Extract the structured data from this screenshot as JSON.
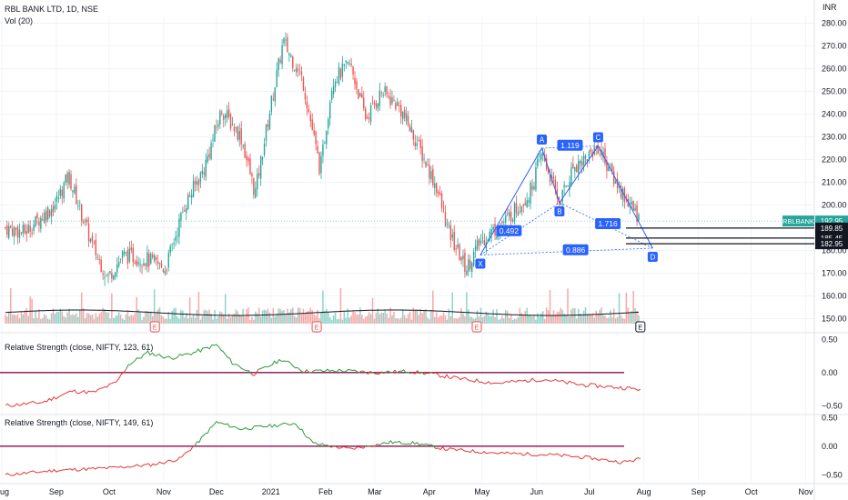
{
  "header": {
    "symbol_line": "RBL BANK LTD, 1D, NSE",
    "volume_label": "Vol (20)",
    "currency": "INR"
  },
  "colors": {
    "up": "#26a69a",
    "down": "#ef5350",
    "volume_up": "#90d2c9",
    "volume_down": "#f7a9a7",
    "pattern": "#2962ff",
    "rs_positive": "#2e9a3a",
    "rs_negative": "#e53935",
    "rs_zero": "#880e4f",
    "last_price_bg": "#26a69a"
  },
  "chart_data": [
    {
      "type": "candlestick",
      "title": "RBL BANK LTD, 1D, NSE",
      "x_tick_labels": [
        "Aug",
        "Sep",
        "Oct",
        "Nov",
        "Dec",
        "2021",
        "Feb",
        "Mar",
        "Apr",
        "May",
        "Jun",
        "Jul",
        "Aug",
        "Sep",
        "Oct",
        "Nov"
      ],
      "y_tick_labels": [
        "280.00",
        "270.00",
        "260.00",
        "250.00",
        "240.00",
        "230.00",
        "220.00",
        "210.00",
        "200.00",
        "190.00",
        "180.00",
        "170.00",
        "160.00",
        "150.00"
      ],
      "ylim": [
        147,
        283
      ],
      "close_path": [
        {
          "date": "2020-08-03",
          "close": 190
        },
        {
          "date": "2020-08-14",
          "close": 188
        },
        {
          "date": "2020-08-31",
          "close": 200
        },
        {
          "date": "2020-09-08",
          "close": 213
        },
        {
          "date": "2020-09-21",
          "close": 183
        },
        {
          "date": "2020-09-30",
          "close": 168
        },
        {
          "date": "2020-10-09",
          "close": 178
        },
        {
          "date": "2020-10-23",
          "close": 176
        },
        {
          "date": "2020-11-02",
          "close": 172
        },
        {
          "date": "2020-11-13",
          "close": 200
        },
        {
          "date": "2020-11-24",
          "close": 216
        },
        {
          "date": "2020-12-04",
          "close": 242
        },
        {
          "date": "2020-12-15",
          "close": 230
        },
        {
          "date": "2020-12-23",
          "close": 205
        },
        {
          "date": "2020-12-31",
          "close": 240
        },
        {
          "date": "2021-01-08",
          "close": 272
        },
        {
          "date": "2021-01-19",
          "close": 255
        },
        {
          "date": "2021-01-29",
          "close": 215
        },
        {
          "date": "2021-02-05",
          "close": 255
        },
        {
          "date": "2021-02-15",
          "close": 262
        },
        {
          "date": "2021-02-24",
          "close": 238
        },
        {
          "date": "2021-03-05",
          "close": 250
        },
        {
          "date": "2021-03-15",
          "close": 243
        },
        {
          "date": "2021-03-24",
          "close": 229
        },
        {
          "date": "2021-04-05",
          "close": 208
        },
        {
          "date": "2021-04-12",
          "close": 188
        },
        {
          "date": "2021-04-22",
          "close": 172
        },
        {
          "date": "2021-04-30",
          "close": 184
        },
        {
          "date": "2021-05-14",
          "close": 193
        },
        {
          "date": "2021-05-28",
          "close": 205
        },
        {
          "date": "2021-06-04",
          "close": 223
        },
        {
          "date": "2021-06-14",
          "close": 201
        },
        {
          "date": "2021-06-22",
          "close": 217
        },
        {
          "date": "2021-07-01",
          "close": 222
        },
        {
          "date": "2021-07-06",
          "close": 226
        },
        {
          "date": "2021-07-16",
          "close": 210
        },
        {
          "date": "2021-07-30",
          "close": 193
        }
      ],
      "harmonic_pattern": {
        "points": [
          {
            "label": "X",
            "date": "2021-04-30",
            "price": 178
          },
          {
            "label": "A",
            "date": "2021-06-04",
            "price": 225
          },
          {
            "label": "B",
            "date": "2021-06-14",
            "price": 201
          },
          {
            "label": "C",
            "date": "2021-07-06",
            "price": 226
          },
          {
            "label": "D",
            "date": "2021-08-06",
            "price": 181
          }
        ],
        "ratios": [
          {
            "label": "0.492",
            "between": "XA-AB"
          },
          {
            "label": "1.119",
            "between": "AB-BC"
          },
          {
            "label": "1.716",
            "between": "BC-CD"
          },
          {
            "label": "0.886",
            "between": "XA-AD"
          }
        ]
      },
      "price_levels": [
        {
          "label": "RBLBANK",
          "value": "192.95",
          "price": 192.95,
          "style": "last"
        },
        {
          "label": "",
          "value": "189.85",
          "price": 189.85,
          "style": "dark"
        },
        {
          "label": "",
          "value": "185.45",
          "price": 185.45,
          "style": "dark"
        },
        {
          "label": "",
          "value": "182.95",
          "price": 182.95,
          "style": "dark"
        }
      ],
      "earnings_markers": [
        {
          "label": "E",
          "date": "2020-10-27"
        },
        {
          "label": "E",
          "date": "2021-01-27"
        },
        {
          "label": "E",
          "date": "2021-04-28"
        },
        {
          "label": "E",
          "date": "2021-07-30"
        }
      ]
    },
    {
      "type": "line",
      "title": "Relative Strength (close, NIFTY, 123, 61)",
      "y_tick_labels": [
        "0.50",
        "0.00",
        "−0.50"
      ],
      "ylim": [
        -0.62,
        0.52
      ],
      "reference_line": 0,
      "series": [
        {
          "values": [
            {
              "date": "2020-08-03",
              "value": -0.5
            },
            {
              "date": "2020-08-24",
              "value": -0.45
            },
            {
              "date": "2020-09-10",
              "value": -0.28
            },
            {
              "date": "2020-09-22",
              "value": -0.3
            },
            {
              "date": "2020-10-05",
              "value": -0.15
            },
            {
              "date": "2020-10-12",
              "value": 0.12
            },
            {
              "date": "2020-10-23",
              "value": 0.3
            },
            {
              "date": "2020-11-05",
              "value": 0.22
            },
            {
              "date": "2020-11-18",
              "value": 0.3
            },
            {
              "date": "2020-12-01",
              "value": 0.42
            },
            {
              "date": "2020-12-10",
              "value": 0.15
            },
            {
              "date": "2020-12-22",
              "value": -0.02
            },
            {
              "date": "2021-01-07",
              "value": 0.2
            },
            {
              "date": "2021-01-20",
              "value": 0.02
            },
            {
              "date": "2021-02-10",
              "value": 0.03
            },
            {
              "date": "2021-03-01",
              "value": 0.0
            },
            {
              "date": "2021-03-20",
              "value": 0.02
            },
            {
              "date": "2021-04-02",
              "value": -0.02
            },
            {
              "date": "2021-04-20",
              "value": -0.1
            },
            {
              "date": "2021-05-10",
              "value": -0.16
            },
            {
              "date": "2021-06-05",
              "value": -0.1
            },
            {
              "date": "2021-06-25",
              "value": -0.18
            },
            {
              "date": "2021-07-15",
              "value": -0.22
            },
            {
              "date": "2021-07-30",
              "value": -0.25
            }
          ]
        }
      ]
    },
    {
      "type": "line",
      "title": "Relative Strength (close, NIFTY, 149, 61)",
      "y_tick_labels": [
        "0.50",
        "0.00",
        "−0.50"
      ],
      "ylim": [
        -0.62,
        0.52
      ],
      "reference_line": 0,
      "series": [
        {
          "values": [
            {
              "date": "2020-08-03",
              "value": -0.5
            },
            {
              "date": "2020-09-01",
              "value": -0.42
            },
            {
              "date": "2020-10-01",
              "value": -0.38
            },
            {
              "date": "2020-10-26",
              "value": -0.32
            },
            {
              "date": "2020-11-10",
              "value": -0.22
            },
            {
              "date": "2020-11-20",
              "value": 0.05
            },
            {
              "date": "2020-12-01",
              "value": 0.42
            },
            {
              "date": "2020-12-15",
              "value": 0.3
            },
            {
              "date": "2020-12-30",
              "value": 0.35
            },
            {
              "date": "2021-01-15",
              "value": 0.4
            },
            {
              "date": "2021-01-25",
              "value": 0.05
            },
            {
              "date": "2021-02-15",
              "value": -0.05
            },
            {
              "date": "2021-03-10",
              "value": 0.07
            },
            {
              "date": "2021-03-25",
              "value": 0.05
            },
            {
              "date": "2021-04-10",
              "value": -0.05
            },
            {
              "date": "2021-05-10",
              "value": -0.12
            },
            {
              "date": "2021-06-10",
              "value": -0.15
            },
            {
              "date": "2021-06-30",
              "value": -0.2
            },
            {
              "date": "2021-07-20",
              "value": -0.28
            },
            {
              "date": "2021-07-30",
              "value": -0.22
            }
          ]
        }
      ]
    }
  ]
}
